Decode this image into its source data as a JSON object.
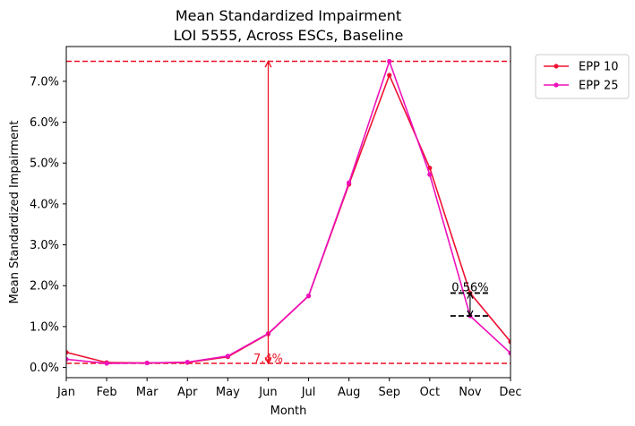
{
  "chart_data": {
    "type": "line",
    "title": "Mean Standardized Impairment",
    "subtitle": "LOI 5555, Across ESCs, Baseline",
    "xlabel": "Month",
    "ylabel": "Mean Standardized Impairment",
    "categories": [
      "Jan",
      "Feb",
      "Mar",
      "Apr",
      "May",
      "Jun",
      "Jul",
      "Aug",
      "Sep",
      "Oct",
      "Nov",
      "Dec"
    ],
    "ylim": [
      -0.0025,
      0.0785
    ],
    "yticks": [
      0.0,
      0.01,
      0.02,
      0.03,
      0.04,
      0.05,
      0.06,
      0.07
    ],
    "ytick_labels": [
      "0.0%",
      "1.0%",
      "2.0%",
      "3.0%",
      "4.0%",
      "5.0%",
      "6.0%",
      "7.0%"
    ],
    "grid": false,
    "legend": {
      "placement": "outside-top-right"
    },
    "series": [
      {
        "name": "EPP 10",
        "color": "#ee1133",
        "values": [
          0.0037,
          0.0012,
          0.0011,
          0.0012,
          0.0026,
          0.0082,
          0.0175,
          0.0448,
          0.0715,
          0.0488,
          0.0182,
          0.0063
        ]
      },
      {
        "name": "EPP 25",
        "color": "#ee11bb",
        "values": [
          0.002,
          0.001,
          0.0011,
          0.0013,
          0.0028,
          0.0083,
          0.0175,
          0.0452,
          0.0749,
          0.0472,
          0.0126,
          0.0035
        ]
      }
    ],
    "reference_lines": [
      {
        "y": 0.0749,
        "color": "#ee1122",
        "style": "dashed"
      },
      {
        "y": 0.001,
        "color": "#ee1122",
        "style": "dashed"
      }
    ],
    "annotations": [
      {
        "kind": "range-arrow",
        "x": "Jun",
        "y_from": 0.001,
        "y_to": 0.0749,
        "color": "#ee1122",
        "label": "7.4%"
      },
      {
        "kind": "diff-marker",
        "x": "Nov",
        "y_from": 0.0126,
        "y_to": 0.0182,
        "color": "#000000",
        "label": "0.56%"
      }
    ]
  }
}
